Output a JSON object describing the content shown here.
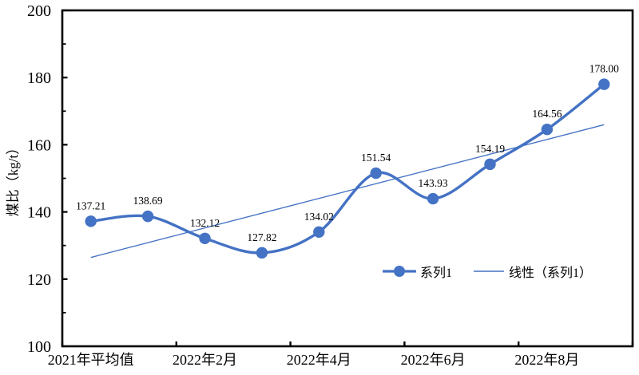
{
  "chart_data": {
    "type": "line",
    "title": "",
    "xlabel": "",
    "ylabel": "煤比（kg/t）",
    "ylim": [
      100,
      200
    ],
    "y_major_interval": 20,
    "y_minor_interval": 10,
    "y_tick_labels": [
      "100",
      "120",
      "140",
      "160",
      "180",
      "200"
    ],
    "x_tick_labels": [
      "2021年平均值",
      "2022年2月",
      "2022年4月",
      "2022年6月",
      "2022年8月"
    ],
    "x_label_category_positions": [
      0,
      2,
      4,
      6,
      8
    ],
    "n_categories": 10,
    "grid": false,
    "legend_position": "inside-bottom-right",
    "series": [
      {
        "name": "系列1",
        "type": "smooth_line_with_markers",
        "color": "#4472C4",
        "values": [
          137.21,
          138.69,
          132.12,
          127.82,
          134.02,
          151.54,
          143.93,
          154.19,
          164.56,
          178.0
        ],
        "data_labels": [
          "137.21",
          "138.69",
          "132.12",
          "127.82",
          "134.02",
          "151.54",
          "143.93",
          "154.19",
          "164.56",
          "178.00"
        ]
      },
      {
        "name": "线性（系列1）",
        "type": "linear_trendline",
        "color": "#4472C4"
      }
    ],
    "colors": {
      "series": "#4472C4",
      "axis": "#000000",
      "text": "#000000"
    }
  }
}
